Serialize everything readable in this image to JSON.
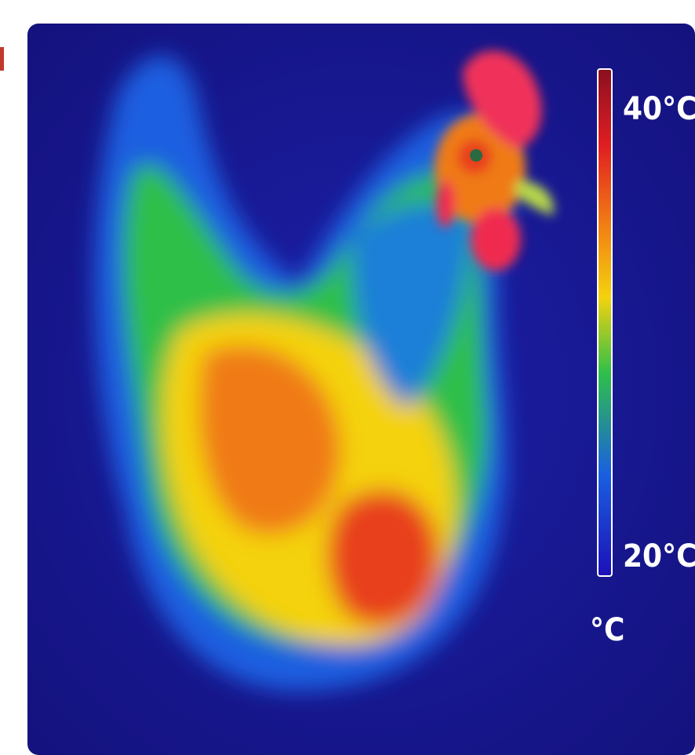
{
  "colorbar": {
    "max_label": "40°C",
    "min_label": "20°C",
    "unit": "°C"
  }
}
